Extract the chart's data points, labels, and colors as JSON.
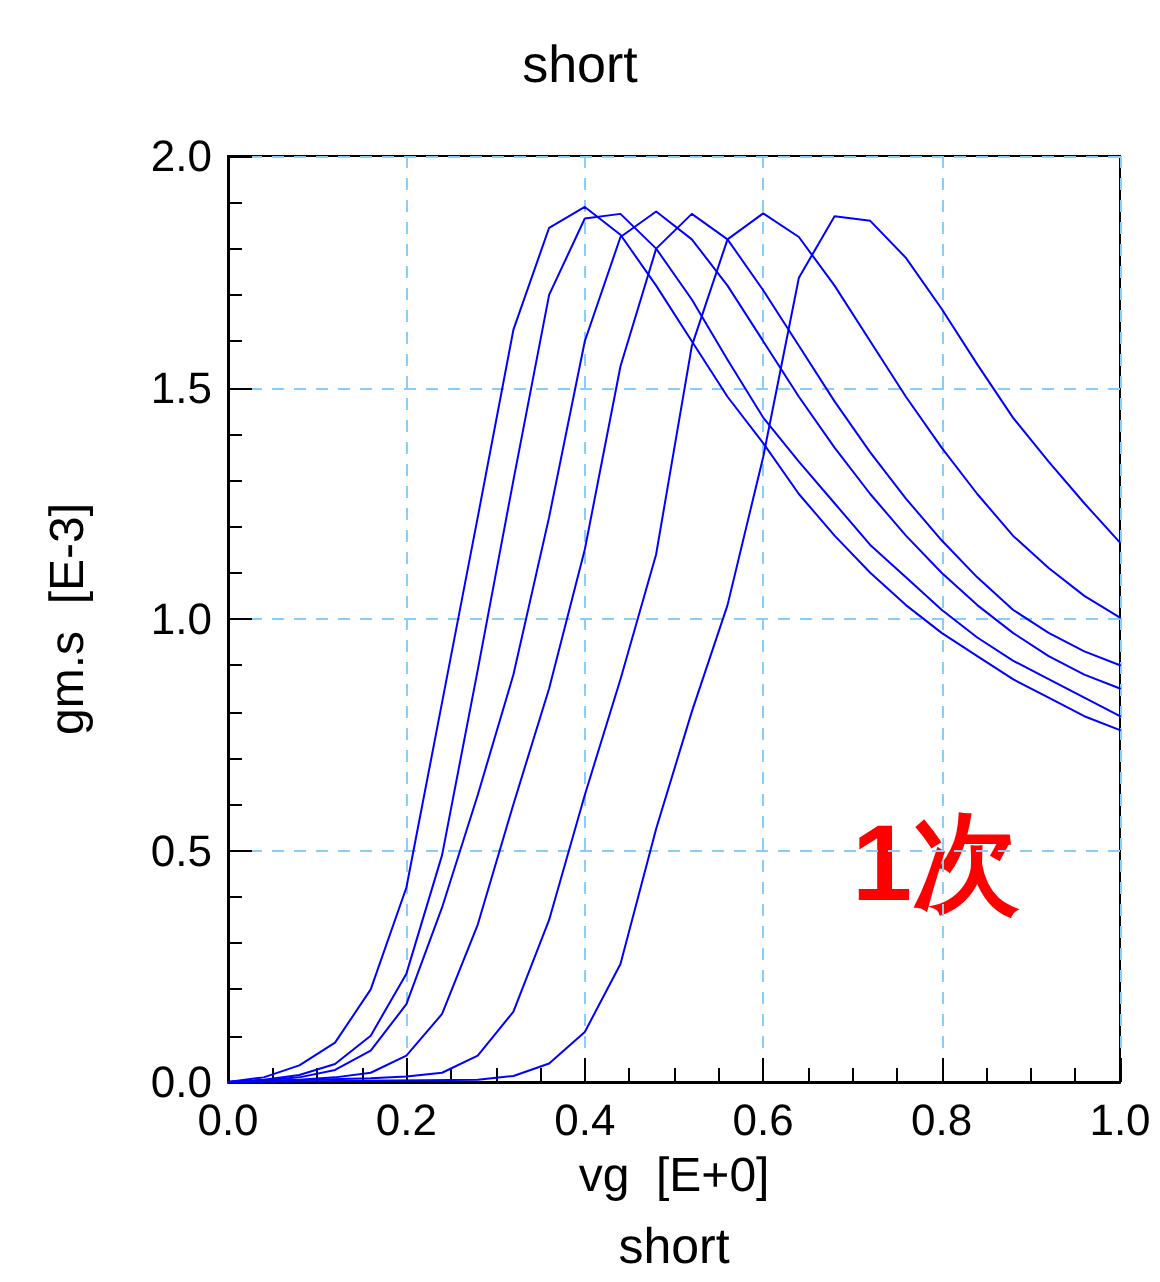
{
  "chart_data": {
    "type": "line",
    "title": "short",
    "xlabel": "vg  [E+0]",
    "ylabel": "gm.s  [E-3]",
    "annotations": [
      "1次",
      "short"
    ],
    "xlim": [
      0,
      1
    ],
    "ylim": [
      0,
      2
    ],
    "xticks": [
      {
        "value": 0,
        "label": "0.0"
      },
      {
        "value": 0.2,
        "label": "0.2"
      },
      {
        "value": 0.4,
        "label": "0.4"
      },
      {
        "value": 0.6,
        "label": "0.6"
      },
      {
        "value": 0.8,
        "label": "0.8"
      },
      {
        "value": 1,
        "label": "1.0"
      }
    ],
    "yticks": [
      {
        "value": 0,
        "label": "0.0"
      },
      {
        "value": 0.5,
        "label": "0.5"
      },
      {
        "value": 1,
        "label": "1.0"
      },
      {
        "value": 1.5,
        "label": "1.5"
      },
      {
        "value": 2,
        "label": "2.0"
      }
    ],
    "grid": true,
    "marker": "none",
    "line_style": "solid",
    "series": [
      {
        "color": "#0000ff",
        "x": [
          0,
          0.04,
          0.08,
          0.12,
          0.16,
          0.2,
          0.24,
          0.28,
          0.32,
          0.36,
          0.4,
          0.44,
          0.48,
          0.52,
          0.56,
          0.6,
          0.64,
          0.68,
          0.72,
          0.76,
          0.8,
          0.84,
          0.88,
          0.92,
          0.96,
          1
        ],
        "values": [
          0,
          0.01,
          0.036,
          0.085,
          0.2,
          0.42,
          0.82,
          1.22,
          1.625,
          1.845,
          1.89,
          1.83,
          1.72,
          1.6,
          1.48,
          1.38,
          1.27,
          1.18,
          1.1,
          1.03,
          0.97,
          0.92,
          0.87,
          0.83,
          0.79,
          0.76
        ]
      },
      {
        "color": "#0000ff",
        "x": [
          0,
          0.04,
          0.08,
          0.12,
          0.16,
          0.2,
          0.24,
          0.28,
          0.32,
          0.36,
          0.4,
          0.44,
          0.48,
          0.52,
          0.56,
          0.6,
          0.64,
          0.68,
          0.72,
          0.76,
          0.8,
          0.84,
          0.88,
          0.92,
          0.96,
          1
        ],
        "values": [
          0,
          0.005,
          0.015,
          0.039,
          0.1,
          0.234,
          0.49,
          0.89,
          1.3,
          1.7,
          1.865,
          1.875,
          1.8,
          1.69,
          1.56,
          1.435,
          1.34,
          1.25,
          1.16,
          1.09,
          1.02,
          0.96,
          0.91,
          0.87,
          0.83,
          0.79
        ]
      },
      {
        "color": "#0000ff",
        "x": [
          0,
          0.04,
          0.08,
          0.12,
          0.16,
          0.2,
          0.24,
          0.28,
          0.32,
          0.36,
          0.4,
          0.44,
          0.48,
          0.52,
          0.56,
          0.6,
          0.64,
          0.68,
          0.72,
          0.76,
          0.8,
          0.84,
          0.88,
          0.92,
          0.96,
          1
        ],
        "values": [
          0,
          0.003,
          0.01,
          0.026,
          0.068,
          0.168,
          0.377,
          0.62,
          0.88,
          1.22,
          1.6,
          1.825,
          1.88,
          1.82,
          1.72,
          1.6,
          1.48,
          1.37,
          1.27,
          1.18,
          1.1,
          1.03,
          0.97,
          0.92,
          0.88,
          0.85
        ]
      },
      {
        "color": "#0000ff",
        "x": [
          0,
          0.08,
          0.12,
          0.16,
          0.2,
          0.24,
          0.28,
          0.32,
          0.36,
          0.4,
          0.44,
          0.48,
          0.52,
          0.56,
          0.6,
          0.64,
          0.68,
          0.72,
          0.76,
          0.8,
          0.84,
          0.88,
          0.92,
          0.96,
          1
        ],
        "values": [
          0,
          0.005,
          0.01,
          0.02,
          0.057,
          0.147,
          0.34,
          0.6,
          0.85,
          1.15,
          1.546,
          1.8,
          1.875,
          1.82,
          1.71,
          1.59,
          1.47,
          1.36,
          1.26,
          1.17,
          1.09,
          1.02,
          0.97,
          0.93,
          0.9
        ]
      },
      {
        "color": "#0000ff",
        "x": [
          0,
          0.16,
          0.2,
          0.24,
          0.28,
          0.32,
          0.36,
          0.4,
          0.44,
          0.48,
          0.52,
          0.56,
          0.6,
          0.64,
          0.68,
          0.72,
          0.76,
          0.8,
          0.84,
          0.88,
          0.92,
          0.96,
          1
        ],
        "values": [
          0,
          0.008,
          0.012,
          0.02,
          0.057,
          0.152,
          0.35,
          0.62,
          0.87,
          1.14,
          1.59,
          1.82,
          1.876,
          1.825,
          1.72,
          1.6,
          1.48,
          1.37,
          1.27,
          1.18,
          1.11,
          1.05,
          1.003
        ]
      },
      {
        "color": "#0000ff",
        "x": [
          0,
          0.28,
          0.32,
          0.36,
          0.4,
          0.44,
          0.48,
          0.52,
          0.56,
          0.6,
          0.64,
          0.68,
          0.72,
          0.76,
          0.8,
          0.84,
          0.88,
          0.92,
          0.96,
          1
        ],
        "values": [
          0,
          0.005,
          0.013,
          0.04,
          0.108,
          0.255,
          0.547,
          0.8,
          1.03,
          1.35,
          1.737,
          1.87,
          1.86,
          1.78,
          1.67,
          1.55,
          1.435,
          1.34,
          1.25,
          1.165
        ]
      }
    ]
  }
}
